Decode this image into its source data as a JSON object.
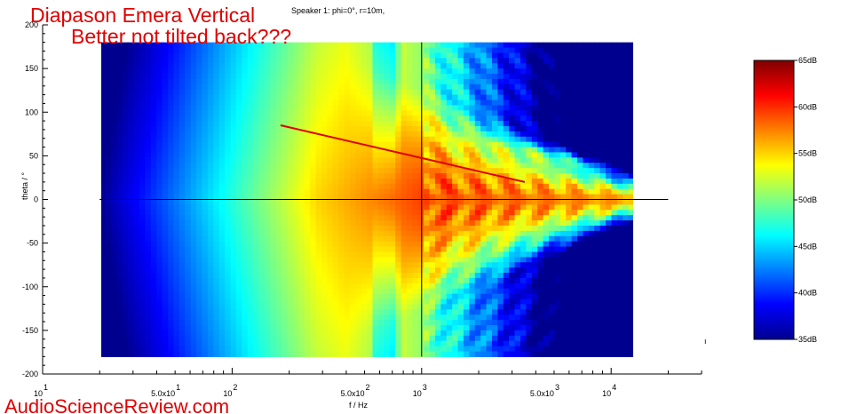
{
  "chart_data": {
    "type": "heatmap",
    "title": "Speaker 1: phi=0°, r=10m,",
    "xlabel": "f / Hz",
    "ylabel": "theta / °",
    "x_scale": "log",
    "xlim": [
      10,
      30000
    ],
    "ylim": [
      -200,
      200
    ],
    "x_data_range": [
      20,
      20000
    ],
    "y_data_range": [
      -180,
      180
    ],
    "y_ticks": [
      "200",
      "150",
      "100",
      "50",
      "0",
      "-50",
      "-100",
      "-150",
      "-200"
    ],
    "x_ticks": [
      {
        "base": "10",
        "exp": "1"
      },
      {
        "base": "5.0x10",
        "exp": "1"
      },
      {
        "base": "10",
        "exp": "2"
      },
      {
        "base": "5.0x10",
        "exp": "2"
      },
      {
        "base": "10",
        "exp": "3"
      },
      {
        "base": "5.0x10",
        "exp": "3"
      },
      {
        "base": "10",
        "exp": "4"
      }
    ],
    "crosshair": {
      "x": 1000,
      "y": 0
    },
    "colorbar": {
      "min_db": 35,
      "max_db": 65,
      "labels": [
        "65dB",
        "60dB",
        "55dB",
        "50dB",
        "45dB",
        "40dB",
        "35dB"
      ],
      "colors": [
        "#00008f",
        "#0000ff",
        "#0080ff",
        "#00ffff",
        "#80ff80",
        "#ffff00",
        "#ff8000",
        "#ff0000",
        "#800000"
      ]
    },
    "annotations": [
      "Diapason Emera Vertical",
      "Better not tilted back???"
    ],
    "annotation_arrow": {
      "from": [
        180,
        85
      ],
      "to": [
        3500,
        20
      ]
    }
  },
  "watermark": "AudioScienceReview.com",
  "stray_mark": "ı"
}
